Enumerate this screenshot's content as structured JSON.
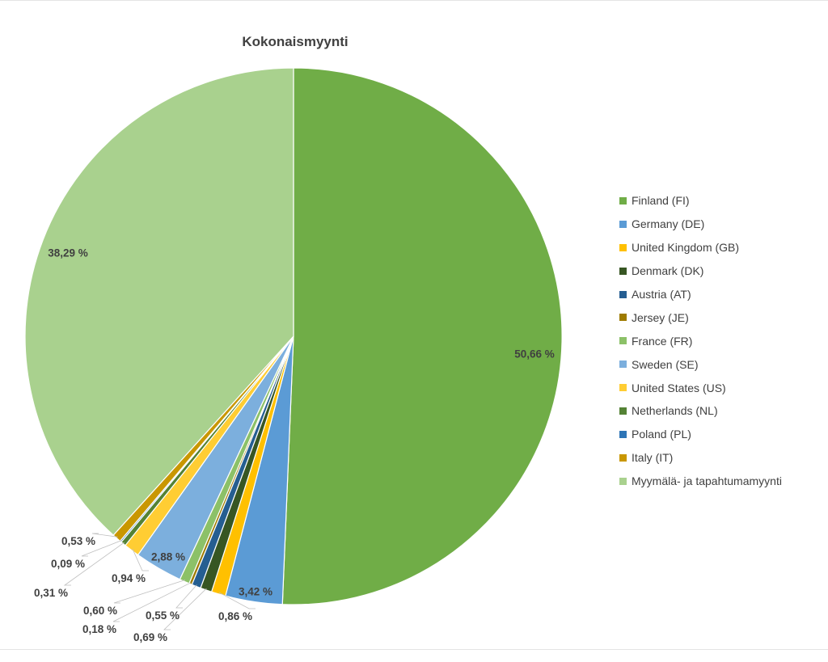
{
  "chart_data": {
    "type": "pie",
    "title": "Kokonaismyynti",
    "legend_position": "right",
    "slices": [
      {
        "name": "Finland (FI)",
        "value": 50.66,
        "label": "50,66 %",
        "color": "#70ad47"
      },
      {
        "name": "Germany (DE)",
        "value": 3.42,
        "label": "3,42 %",
        "color": "#5b9bd5"
      },
      {
        "name": "United Kingdom (GB)",
        "value": 0.86,
        "label": "0,86 %",
        "color": "#ffc000"
      },
      {
        "name": "Denmark (DK)",
        "value": 0.69,
        "label": "0,69 %",
        "color": "#375623"
      },
      {
        "name": "Austria (AT)",
        "value": 0.55,
        "label": "0,55 %",
        "color": "#255e91"
      },
      {
        "name": "Jersey (JE)",
        "value": 0.18,
        "label": "0,18 %",
        "color": "#9e7b00"
      },
      {
        "name": "France (FR)",
        "value": 0.6,
        "label": "0,60 %",
        "color": "#8cc168"
      },
      {
        "name": "Sweden (SE)",
        "value": 2.88,
        "label": "2,88 %",
        "color": "#7cafdd"
      },
      {
        "name": "United States (US)",
        "value": 0.94,
        "label": "0,94 %",
        "color": "#ffcd33"
      },
      {
        "name": "Netherlands (NL)",
        "value": 0.31,
        "label": "0,31 %",
        "color": "#548235"
      },
      {
        "name": "Poland (PL)",
        "value": 0.09,
        "label": "0,09 %",
        "color": "#2e75b6"
      },
      {
        "name": "Italy (IT)",
        "value": 0.53,
        "label": "0,53 %",
        "color": "#c99700"
      },
      {
        "name": "Myymälä- ja tapahtumamyynti",
        "value": 38.29,
        "label": "38,29 %",
        "color": "#a9d18e"
      }
    ]
  }
}
